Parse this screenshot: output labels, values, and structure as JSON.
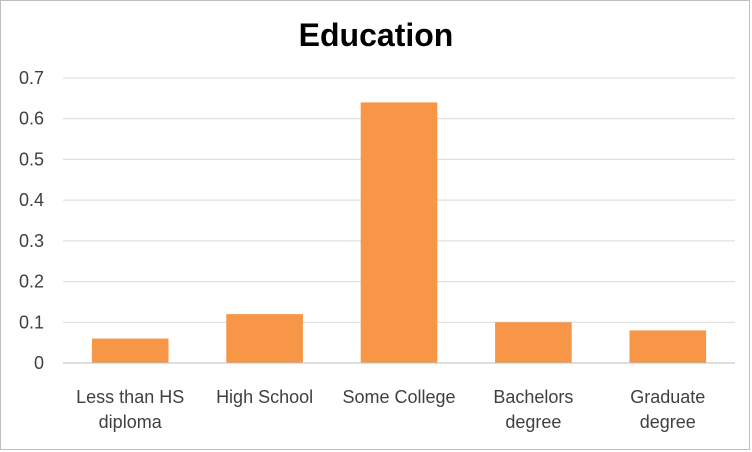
{
  "chart_data": {
    "type": "bar",
    "title": "Education",
    "categories": [
      [
        "Less than HS",
        "diploma"
      ],
      [
        "High School"
      ],
      [
        "Some College"
      ],
      [
        "Bachelors",
        "degree"
      ],
      [
        "Graduate",
        "degree"
      ]
    ],
    "values": [
      0.06,
      0.12,
      0.64,
      0.1,
      0.08
    ],
    "yticks": [
      "0",
      "0.1",
      "0.2",
      "0.3",
      "0.4",
      "0.5",
      "0.6",
      "0.7"
    ],
    "ylim": [
      0,
      0.7
    ],
    "xlabel": "",
    "ylabel": "",
    "grid": true,
    "legend": "none",
    "colors": {
      "bar": "#f79646",
      "grid": "#d9d9d9",
      "axis": "#bfbfbf",
      "text": "#404040"
    }
  }
}
